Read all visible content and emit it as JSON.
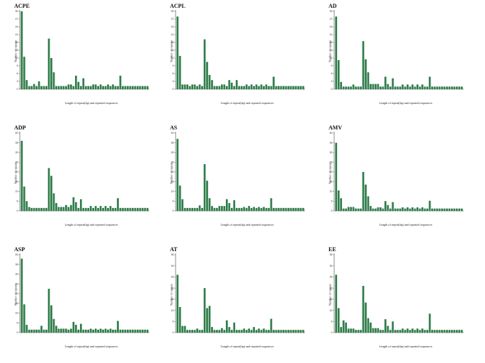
{
  "colors": {
    "bar": "#2e7d4a",
    "axis": "#444444",
    "text": "#222222"
  },
  "axis_labels": {
    "ylabel": "Number of repeats",
    "xlabel": "Length of repeat(bp) and repeated sequences"
  },
  "chart_data": [
    {
      "type": "bar",
      "title": "ACPE",
      "ylim": [
        0,
        30
      ],
      "yticks": [
        0,
        3,
        6,
        9,
        12,
        15,
        18,
        21,
        24,
        27,
        30
      ],
      "values": [
        30,
        12.5,
        3.5,
        1.2,
        1.2,
        2,
        1.2,
        3,
        1.2,
        1.2,
        1.2,
        19.5,
        12,
        6.5,
        1.2,
        1.2,
        1.2,
        1.2,
        1.2,
        1.8,
        1.8,
        1.2,
        5.2,
        2.8,
        1.2,
        4.2,
        1.2,
        1.2,
        1.2,
        1.8,
        1.8,
        1.2,
        1.8,
        1.2,
        1.2,
        1.8,
        1.2,
        1.8,
        1.2,
        1.2,
        5.2,
        1.2,
        1.2,
        1.2,
        1.2,
        1.2,
        1.2,
        1.2,
        1.2,
        1.2,
        1.2,
        1.2
      ]
    },
    {
      "type": "bar",
      "title": "ACPL",
      "ylim": [
        0,
        30
      ],
      "yticks": [
        0,
        3,
        6,
        9,
        12,
        15,
        18,
        21,
        24,
        27,
        30
      ],
      "values": [
        28,
        12.8,
        1.8,
        1.8,
        1.8,
        1.2,
        1.8,
        1.8,
        1.2,
        1.8,
        1.2,
        19.2,
        10.5,
        5.5,
        3.5,
        1.2,
        1.2,
        1.2,
        1.8,
        1.8,
        1.2,
        3.5,
        2.5,
        1.2,
        3.5,
        1.2,
        1.2,
        1.2,
        1.8,
        1.2,
        1.8,
        1.2,
        1.8,
        1.2,
        1.8,
        1.2,
        1.8,
        1.2,
        1.2,
        4.8,
        1.2,
        1.2,
        1.2,
        1.2,
        1.2,
        1.2,
        1.2,
        1.2,
        1.2,
        1.2,
        1.2,
        1.2
      ]
    },
    {
      "type": "bar",
      "title": "AD",
      "ylim": [
        0,
        30
      ],
      "yticks": [
        0,
        3,
        6,
        9,
        12,
        15,
        18,
        21,
        24,
        27,
        30
      ],
      "values": [
        28,
        11.2,
        2.8,
        1,
        1,
        1,
        1,
        1.8,
        1,
        1,
        1,
        18.5,
        11.5,
        6.5,
        2,
        2,
        2,
        2,
        1,
        1,
        4.8,
        2,
        1,
        4.2,
        1,
        1,
        1,
        1.8,
        1,
        1.8,
        1,
        1.8,
        1,
        1.8,
        1,
        1.8,
        1,
        1,
        4.8,
        1,
        1,
        1,
        1,
        1,
        1,
        1,
        1,
        1,
        1,
        1,
        1,
        1
      ]
    },
    {
      "type": "bar",
      "title": "ADP",
      "ylim": [
        0,
        40
      ],
      "yticks": [
        0,
        5,
        10,
        15,
        20,
        25,
        30,
        35,
        40
      ],
      "values": [
        36,
        12.5,
        5,
        2,
        1.5,
        1.5,
        1.5,
        1.5,
        1.5,
        1.5,
        1.5,
        22,
        18,
        9,
        4,
        2,
        2,
        2,
        3,
        2,
        3,
        7,
        4.5,
        1.5,
        6,
        1.5,
        1.5,
        1.5,
        2.5,
        1.5,
        2.5,
        1.5,
        2.5,
        1.5,
        2.5,
        1.5,
        2.5,
        1.5,
        1.5,
        6.5,
        1.5,
        1.5,
        1.5,
        1.5,
        1.5,
        1.5,
        1.5,
        1.5,
        1.5,
        1.5,
        1.5,
        1.5
      ]
    },
    {
      "type": "bar",
      "title": "AS",
      "ylim": [
        0,
        40
      ],
      "yticks": [
        0,
        5,
        10,
        15,
        20,
        25,
        30,
        35,
        40
      ],
      "values": [
        37,
        13,
        6,
        1.5,
        1.5,
        1.5,
        1.5,
        1.5,
        1.5,
        2.8,
        1.5,
        24,
        15.5,
        6.5,
        2.5,
        1.5,
        1.5,
        2.5,
        2.5,
        2.5,
        6,
        4,
        1.5,
        5.5,
        1.5,
        1.5,
        1.5,
        2,
        1.5,
        2.5,
        1.5,
        2,
        1.5,
        2,
        1.5,
        2,
        1.5,
        1.5,
        6.5,
        1.5,
        1.5,
        1.5,
        1.5,
        1.5,
        1.5,
        1.5,
        1.5,
        1.5,
        1.5,
        1.5,
        1.5,
        1.5
      ]
    },
    {
      "type": "bar",
      "title": "AMV",
      "ylim": [
        0,
        40
      ],
      "yticks": [
        0,
        5,
        10,
        15,
        20,
        25,
        30,
        35,
        40
      ],
      "values": [
        35,
        10.5,
        6.5,
        1.2,
        1.2,
        2,
        2,
        2,
        1.2,
        1.2,
        1.2,
        20,
        13.5,
        7.5,
        2.5,
        1.2,
        1.2,
        1.8,
        1.8,
        1.2,
        5,
        3,
        1.2,
        4.5,
        1.2,
        1.2,
        1.2,
        1.8,
        1.2,
        1.8,
        1.2,
        1.8,
        1.2,
        1.8,
        1.2,
        1.8,
        1.2,
        1.2,
        5.2,
        1.2,
        1.2,
        1.2,
        1.2,
        1.2,
        1.2,
        1.2,
        1.2,
        1.2,
        1.2,
        1.2,
        1.2,
        1.2
      ]
    },
    {
      "type": "bar",
      "title": "ASP",
      "ylim": [
        0,
        40
      ],
      "yticks": [
        0,
        5,
        10,
        15,
        20,
        25,
        30,
        35,
        40
      ],
      "values": [
        38,
        14.5,
        4,
        1.5,
        1.5,
        1.5,
        1.5,
        1.5,
        3.5,
        1.5,
        1.5,
        22.5,
        14,
        7,
        3.5,
        2,
        2,
        2,
        2,
        1.5,
        2,
        5.5,
        4,
        1.5,
        4.5,
        1.5,
        1.5,
        1.5,
        2,
        1.5,
        2,
        1.5,
        2,
        1.5,
        2,
        1.5,
        2,
        1.5,
        1.5,
        6,
        1.5,
        1.5,
        1.5,
        1.5,
        1.5,
        1.5,
        1.5,
        1.5,
        1.5,
        1.5,
        1.5,
        1.5
      ]
    },
    {
      "type": "bar",
      "title": "AT",
      "ylim": [
        0,
        35
      ],
      "yticks": [
        0,
        5,
        10,
        15,
        20,
        25,
        30,
        35
      ],
      "values": [
        26,
        11.5,
        3,
        3,
        1.2,
        1.2,
        1.2,
        1.2,
        1.8,
        1.2,
        1.2,
        20,
        11,
        12,
        2.5,
        1.2,
        1.2,
        1.2,
        2,
        1.2,
        5.5,
        2.5,
        1.2,
        4.5,
        1.2,
        1.2,
        1.2,
        1.8,
        1.2,
        1.8,
        1.2,
        2.5,
        1.2,
        1.8,
        1.2,
        1.8,
        1.2,
        1.2,
        6.2,
        1.2,
        1.2,
        1.2,
        1.2,
        1.2,
        1.2,
        1.2,
        1.2,
        1.2,
        1.2,
        1.2,
        1.2,
        1.2
      ]
    },
    {
      "type": "bar",
      "title": "EE",
      "ylim": [
        0,
        35
      ],
      "yticks": [
        0,
        5,
        10,
        15,
        20,
        25,
        30,
        35
      ],
      "values": [
        26,
        11,
        2.5,
        5.5,
        4.5,
        1.8,
        1.8,
        1.8,
        1.2,
        1.2,
        1.2,
        21,
        13.5,
        6.5,
        4.5,
        2,
        2,
        2,
        1.2,
        1.2,
        6,
        3,
        1.2,
        5,
        1.2,
        1.2,
        1.2,
        1.8,
        1.2,
        1.8,
        1.2,
        1.8,
        1.2,
        1.8,
        1.2,
        1.8,
        1.2,
        1.2,
        8.5,
        1.2,
        1.2,
        1.2,
        1.2,
        1.2,
        1.2,
        1.2,
        1.2,
        1.2,
        1.2,
        1.2,
        1.2,
        1.2
      ]
    }
  ]
}
